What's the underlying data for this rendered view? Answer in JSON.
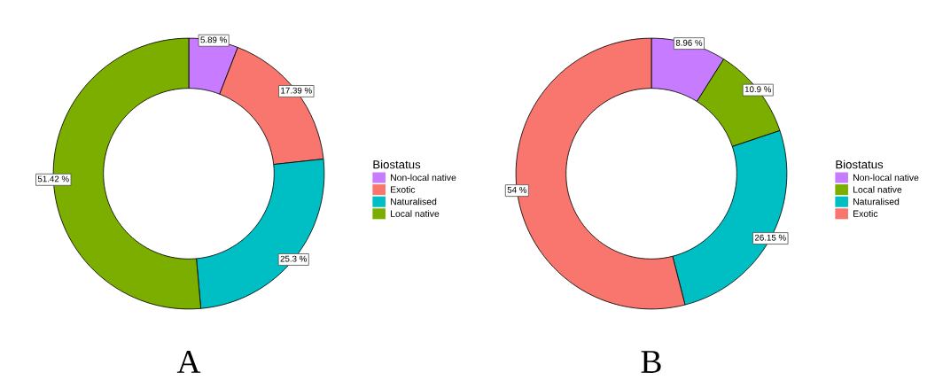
{
  "chart_data": [
    {
      "type": "donut",
      "title": "A",
      "legend_title": "Biostatus",
      "legend": "right",
      "categories": [
        "Non-local native",
        "Exotic",
        "Naturalised",
        "Local native"
      ],
      "values": [
        5.89,
        17.39,
        25.3,
        51.42
      ],
      "colors": [
        "#c77cff",
        "#f8766d",
        "#00bfc4",
        "#7cae00"
      ],
      "value_labels": [
        "5.89 %",
        "17.39 %",
        "25.3 %",
        "51.42 %"
      ]
    },
    {
      "type": "donut",
      "title": "B",
      "legend_title": "Biostatus",
      "legend": "right",
      "categories": [
        "Non-local native",
        "Local native",
        "Naturalised",
        "Exotic"
      ],
      "values": [
        8.96,
        10.9,
        26.15,
        54
      ],
      "colors": [
        "#c77cff",
        "#7cae00",
        "#00bfc4",
        "#f8766d"
      ],
      "value_labels": [
        "8.96 %",
        "10.9 %",
        "26.15 %",
        "54 %"
      ]
    }
  ]
}
